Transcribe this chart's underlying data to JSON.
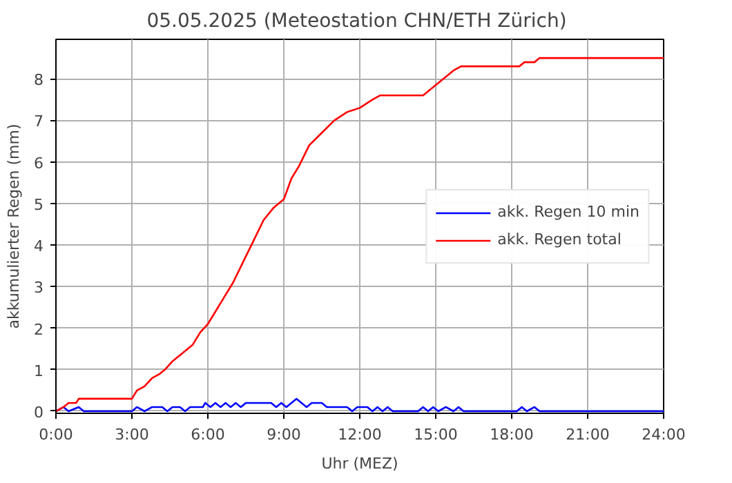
{
  "chart_data": {
    "type": "line",
    "title": "05.05.2025  (Meteostation CHN/ETH Zürich)",
    "xlabel": "Uhr (MEZ)",
    "ylabel": "akkumulierter Regen (mm)",
    "xlim": [
      0,
      24
    ],
    "ylim": [
      -0.05,
      8.95
    ],
    "xticks": [
      {
        "value": 0,
        "label": "0:00"
      },
      {
        "value": 3,
        "label": "3:00"
      },
      {
        "value": 6,
        "label": "6:00"
      },
      {
        "value": 9,
        "label": "9:00"
      },
      {
        "value": 12,
        "label": "12:00"
      },
      {
        "value": 15,
        "label": "15:00"
      },
      {
        "value": 18,
        "label": "18:00"
      },
      {
        "value": 21,
        "label": "21:00"
      },
      {
        "value": 24,
        "label": "24:00"
      }
    ],
    "yticks": [
      0,
      1,
      2,
      3,
      4,
      5,
      6,
      7,
      8
    ],
    "grid": true,
    "legend": "right",
    "line_style": "solid",
    "series": [
      {
        "name": "akk. Regen 10 min",
        "color": "#0000ff",
        "x": [
          0,
          0.3,
          0.5,
          0.9,
          1.1,
          3.0,
          3.2,
          3.5,
          3.8,
          4.2,
          4.4,
          4.6,
          4.9,
          5.1,
          5.3,
          5.8,
          5.9,
          6.1,
          6.3,
          6.5,
          6.7,
          6.9,
          7.1,
          7.3,
          7.5,
          8.5,
          8.7,
          8.9,
          9.1,
          9.5,
          9.9,
          10.1,
          10.5,
          10.7,
          11.5,
          11.7,
          11.9,
          12.3,
          12.5,
          12.7,
          12.9,
          13.1,
          13.3,
          14.3,
          14.5,
          14.7,
          14.9,
          15.1,
          15.4,
          15.7,
          15.9,
          16.1,
          18.2,
          18.4,
          18.6,
          18.9,
          19.1,
          24
        ],
        "values": [
          0,
          0.1,
          0,
          0.1,
          0,
          0,
          0.1,
          0,
          0.1,
          0.1,
          0,
          0.1,
          0.1,
          0,
          0.1,
          0.1,
          0.2,
          0.1,
          0.2,
          0.1,
          0.2,
          0.1,
          0.2,
          0.1,
          0.2,
          0.2,
          0.1,
          0.2,
          0.1,
          0.3,
          0.1,
          0.2,
          0.2,
          0.1,
          0.1,
          0,
          0.1,
          0.1,
          0,
          0.1,
          0,
          0.1,
          0,
          0,
          0.1,
          0,
          0.1,
          0,
          0.1,
          0,
          0.1,
          0,
          0,
          0.1,
          0,
          0.1,
          0,
          0
        ]
      },
      {
        "name": "akk. Regen total",
        "color": "#ff0000",
        "x": [
          0,
          0.3,
          0.5,
          0.8,
          0.9,
          3.0,
          3.2,
          3.5,
          3.8,
          4.1,
          4.3,
          4.6,
          5.0,
          5.4,
          5.7,
          6.0,
          6.3,
          6.6,
          7.0,
          7.4,
          7.8,
          8.2,
          8.6,
          9.0,
          9.3,
          9.6,
          10.0,
          10.5,
          11.0,
          11.5,
          12.0,
          12.5,
          12.8,
          14.5,
          14.9,
          15.3,
          15.7,
          16.0,
          18.3,
          18.5,
          18.9,
          19.1,
          24
        ],
        "values": [
          0,
          0.1,
          0.2,
          0.2,
          0.3,
          0.3,
          0.5,
          0.6,
          0.8,
          0.9,
          1.0,
          1.2,
          1.4,
          1.6,
          1.9,
          2.1,
          2.4,
          2.7,
          3.1,
          3.6,
          4.1,
          4.6,
          4.9,
          5.1,
          5.6,
          5.9,
          6.4,
          6.7,
          7.0,
          7.2,
          7.3,
          7.5,
          7.6,
          7.6,
          7.8,
          8.0,
          8.2,
          8.3,
          8.3,
          8.4,
          8.4,
          8.5,
          8.5
        ]
      }
    ]
  }
}
